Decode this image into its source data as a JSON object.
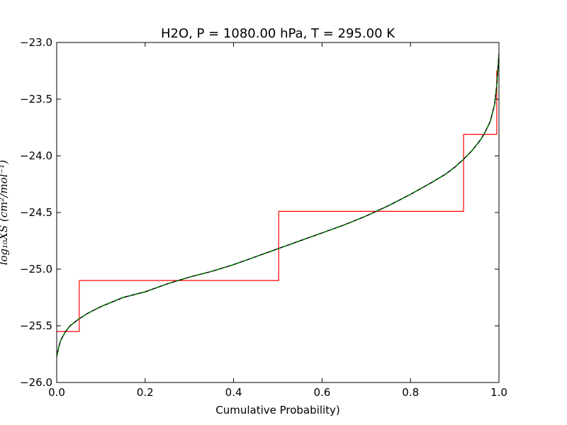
{
  "chart_data": {
    "type": "line",
    "title": "H2O, P = 1080.00 hPa, T = 295.00 K",
    "xlabel": "Cumulative Probability)",
    "ylabel": "log₁₀XS (cm²/mol⁻¹)",
    "xlim": [
      0.0,
      1.0
    ],
    "ylim": [
      -26.0,
      -23.0
    ],
    "xticks": [
      0.0,
      0.2,
      0.4,
      0.6,
      0.8,
      1.0
    ],
    "xtick_labels": [
      "0.0",
      "0.2",
      "0.4",
      "0.6",
      "0.8",
      "1.0"
    ],
    "yticks": [
      -26.0,
      -25.5,
      -25.0,
      -24.5,
      -24.0,
      -23.5,
      -23.0
    ],
    "ytick_labels": [
      "−26.0",
      "−25.5",
      "−25.0",
      "−24.5",
      "−24.0",
      "−23.5",
      "−23.0"
    ],
    "grid": false,
    "series": [
      {
        "color": "#000000",
        "style": "solid",
        "x": [
          0.0,
          0.005,
          0.01,
          0.02,
          0.03,
          0.05,
          0.07,
          0.1,
          0.15,
          0.2,
          0.25,
          0.3,
          0.35,
          0.4,
          0.45,
          0.5,
          0.55,
          0.6,
          0.65,
          0.7,
          0.75,
          0.8,
          0.85,
          0.88,
          0.9,
          0.92,
          0.94,
          0.96,
          0.97,
          0.98,
          0.99,
          0.995,
          1.0
        ],
        "y": [
          -25.77,
          -25.68,
          -25.62,
          -25.55,
          -25.5,
          -25.44,
          -25.39,
          -25.33,
          -25.25,
          -25.2,
          -25.13,
          -25.07,
          -25.02,
          -24.96,
          -24.89,
          -24.82,
          -24.75,
          -24.68,
          -24.61,
          -24.53,
          -24.44,
          -24.34,
          -24.23,
          -24.16,
          -24.1,
          -24.03,
          -23.95,
          -23.85,
          -23.78,
          -23.7,
          -23.55,
          -23.38,
          -23.1
        ]
      },
      {
        "color": "#008000",
        "style": "dashed",
        "x": [
          0.0,
          0.005,
          0.01,
          0.02,
          0.03,
          0.05,
          0.07,
          0.1,
          0.15,
          0.2,
          0.25,
          0.3,
          0.35,
          0.4,
          0.45,
          0.5,
          0.55,
          0.6,
          0.65,
          0.7,
          0.75,
          0.8,
          0.85,
          0.88,
          0.9,
          0.92,
          0.94,
          0.96,
          0.97,
          0.98,
          0.99,
          0.995,
          1.0
        ],
        "y": [
          -25.77,
          -25.68,
          -25.62,
          -25.55,
          -25.5,
          -25.44,
          -25.39,
          -25.33,
          -25.25,
          -25.2,
          -25.13,
          -25.07,
          -25.02,
          -24.96,
          -24.89,
          -24.82,
          -24.75,
          -24.68,
          -24.61,
          -24.53,
          -24.44,
          -24.34,
          -24.23,
          -24.16,
          -24.1,
          -24.03,
          -23.95,
          -23.85,
          -23.78,
          -23.7,
          -23.55,
          -23.38,
          -23.1
        ]
      },
      {
        "color": "#ff0000",
        "style": "step",
        "x": [
          0.0,
          0.051,
          0.051,
          0.502,
          0.502,
          0.92,
          0.92,
          0.995,
          0.995,
          1.0
        ],
        "y": [
          -25.55,
          -25.55,
          -25.1,
          -25.1,
          -24.49,
          -24.49,
          -23.81,
          -23.81,
          -23.25,
          -23.25
        ]
      }
    ]
  }
}
